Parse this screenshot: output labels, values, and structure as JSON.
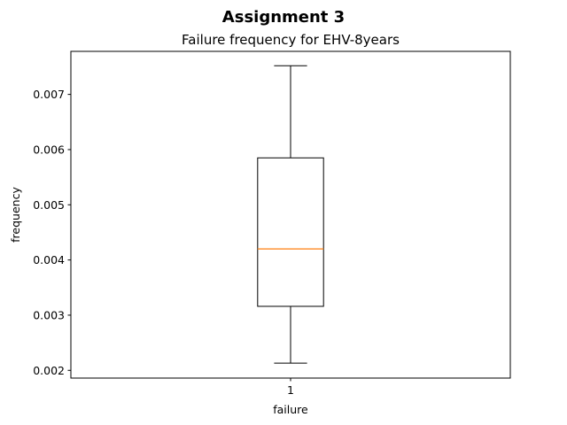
{
  "suptitle": "Assignment 3",
  "chart_data": {
    "type": "box",
    "title": "Failure frequency for EHV-8years",
    "xlabel": "failure",
    "ylabel": "frequency",
    "categories": [
      "1"
    ],
    "ylim": [
      0.00186,
      0.00778
    ],
    "yticks": [
      0.002,
      0.003,
      0.004,
      0.005,
      0.006,
      0.007
    ],
    "ytick_labels": [
      "0.002",
      "0.003",
      "0.004",
      "0.005",
      "0.006",
      "0.007"
    ],
    "boxes": [
      {
        "category": "1",
        "whisker_low": 0.00213,
        "q1": 0.00316,
        "median": 0.0042,
        "q3": 0.00585,
        "whisker_high": 0.00752
      }
    ],
    "grid": false,
    "colors": {
      "box": "#000000",
      "median": "#ff7f0e"
    }
  }
}
